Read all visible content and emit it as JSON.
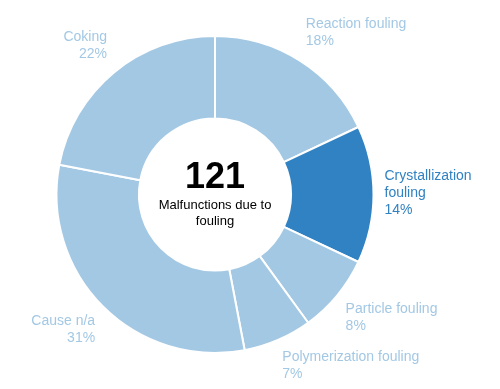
{
  "chart_data": {
    "type": "doughnut",
    "categories": [
      "Reaction fouling",
      "Crystallization fouling",
      "Particle fouling",
      "Polymerization fouling",
      "Cause n/a",
      "Coking"
    ],
    "values": [
      18,
      14,
      8,
      7,
      31,
      22
    ],
    "value_labels": [
      "18%",
      "14%",
      "8%",
      "7%",
      "31%",
      "22%"
    ],
    "colors": [
      "#a3c8e4",
      "#3182c2",
      "#a3c8e4",
      "#a3c8e4",
      "#a3c8e4",
      "#a3c8e4"
    ],
    "data_labels": true,
    "center_value": 121,
    "center_label": "Malfunctions due to fouling"
  }
}
